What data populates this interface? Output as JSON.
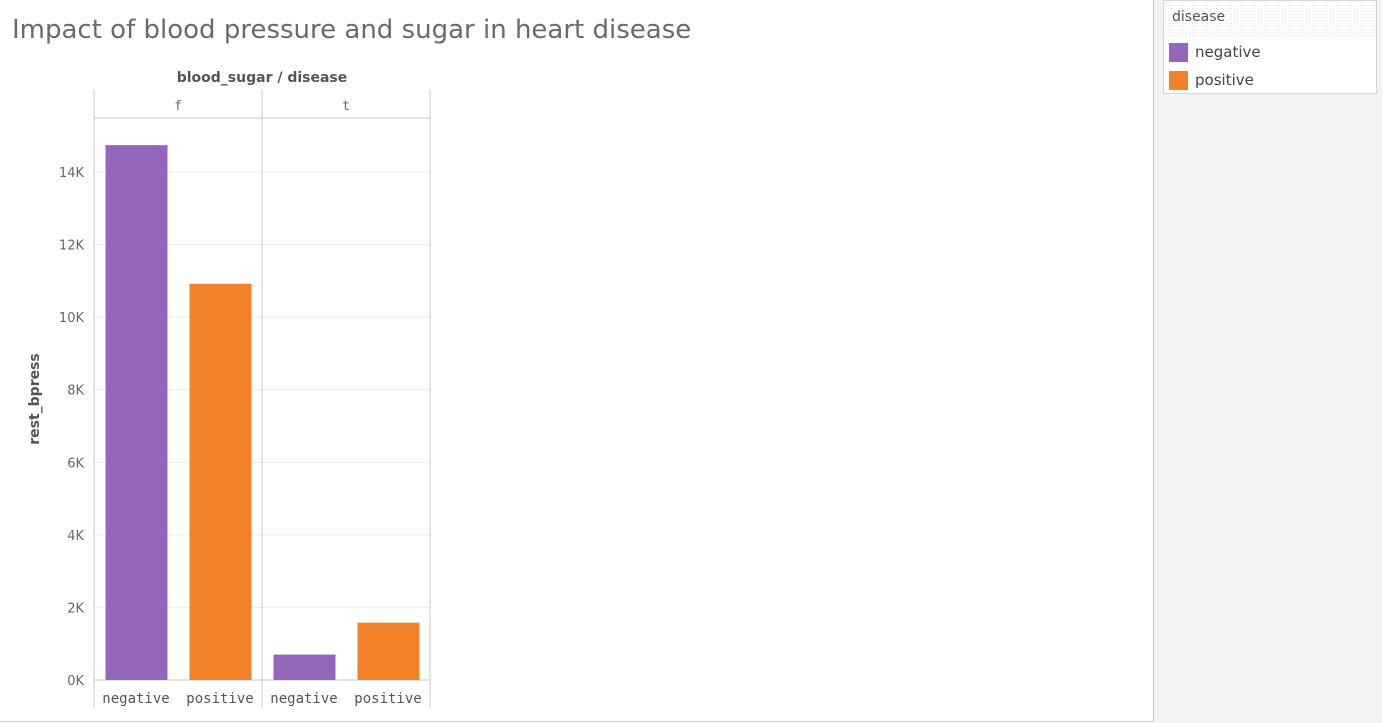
{
  "title": "Impact of blood pressure and sugar in heart disease",
  "legend": {
    "title": "disease",
    "items": [
      {
        "label": "negative",
        "color": "#9467bd"
      },
      {
        "label": "positive",
        "color": "#f28127"
      }
    ]
  },
  "chart_data": {
    "type": "bar",
    "title": "Impact of blood pressure and sugar in heart disease",
    "column_header": "blood_sugar / disease",
    "ylabel": "rest_bpress",
    "xlabel": "",
    "ylim": [
      0,
      16000
    ],
    "yticks": [
      0,
      2000,
      4000,
      6000,
      8000,
      10000,
      12000,
      14000
    ],
    "ytick_labels": [
      "0K",
      "2K",
      "4K",
      "6K",
      "8K",
      "10K",
      "12K",
      "14K"
    ],
    "grid": true,
    "legend_position": "top-right",
    "groups": [
      {
        "name": "f",
        "categories": [
          "negative",
          "positive"
        ],
        "values": [
          14740,
          10920
        ]
      },
      {
        "name": "t",
        "categories": [
          "negative",
          "positive"
        ],
        "values": [
          700,
          1580
        ]
      }
    ],
    "series_colors": {
      "negative": "#9467bd",
      "positive": "#f28127"
    }
  }
}
